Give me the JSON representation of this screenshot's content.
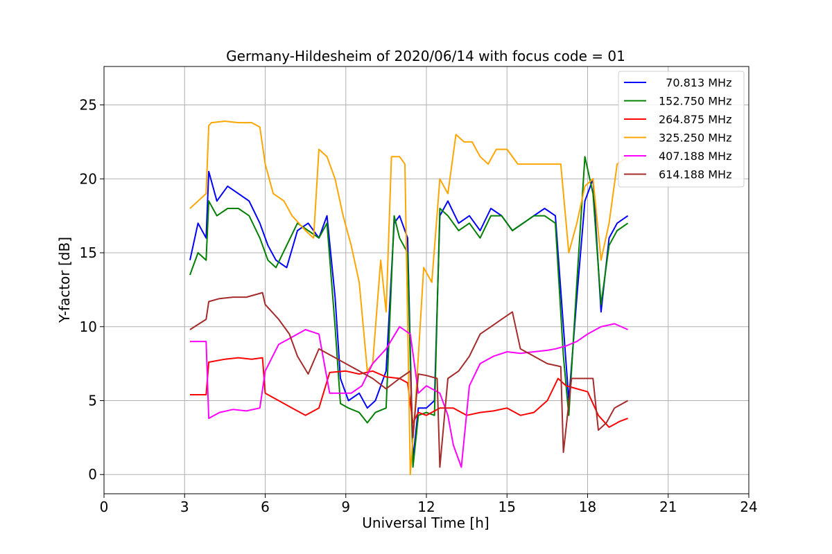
{
  "chart_data": {
    "type": "line",
    "title": "Germany-Hildesheim of 2020/06/14 with focus code = 01",
    "xlabel": "Universal Time [h]",
    "ylabel": "Y-factor [dB]",
    "xlim": [
      0,
      24
    ],
    "ylim": [
      -1.3,
      27.6
    ],
    "xticks": [
      0,
      3,
      6,
      9,
      12,
      15,
      18,
      21,
      24
    ],
    "yticks": [
      0,
      5,
      10,
      15,
      20,
      25
    ],
    "grid": true,
    "legend_position": "top-right",
    "series": [
      {
        "name": "  70.813 MHz",
        "color": "#0000ff",
        "x": [
          3.2,
          3.5,
          3.8,
          3.9,
          4.2,
          4.6,
          5.0,
          5.4,
          5.8,
          6.1,
          6.4,
          6.8,
          7.2,
          7.6,
          8.0,
          8.3,
          8.6,
          8.8,
          9.1,
          9.5,
          9.8,
          10.1,
          10.5,
          10.8,
          11.0,
          11.3,
          11.5,
          11.7,
          12.0,
          12.3,
          12.5,
          12.8,
          13.2,
          13.6,
          14.0,
          14.4,
          14.8,
          15.2,
          15.6,
          16.0,
          16.4,
          16.8,
          17.1,
          17.3,
          17.6,
          17.9,
          18.2,
          18.5,
          18.8,
          19.1,
          19.5
        ],
        "y": [
          14.5,
          17.0,
          16.0,
          20.5,
          18.5,
          19.5,
          19.0,
          18.5,
          17.0,
          15.5,
          14.5,
          14.0,
          16.5,
          17.0,
          16.0,
          17.5,
          12.0,
          6.5,
          5.0,
          5.5,
          4.5,
          5.0,
          7.0,
          17.0,
          17.5,
          16.0,
          1.0,
          4.5,
          4.5,
          5.0,
          17.5,
          18.5,
          17.0,
          17.5,
          16.5,
          18.0,
          17.5,
          16.5,
          17.0,
          17.5,
          18.0,
          17.5,
          10.0,
          5.0,
          12.0,
          18.5,
          20.0,
          11.0,
          16.0,
          17.0,
          17.5
        ]
      },
      {
        "name": "152.750 MHz",
        "color": "#008000",
        "x": [
          3.2,
          3.5,
          3.8,
          3.9,
          4.2,
          4.6,
          5.0,
          5.4,
          5.8,
          6.1,
          6.4,
          6.8,
          7.2,
          7.6,
          8.0,
          8.3,
          8.6,
          8.8,
          9.1,
          9.5,
          9.8,
          10.1,
          10.5,
          10.8,
          11.0,
          11.3,
          11.5,
          11.7,
          12.0,
          12.3,
          12.5,
          12.8,
          13.2,
          13.6,
          14.0,
          14.4,
          14.8,
          15.2,
          15.6,
          16.0,
          16.4,
          16.8,
          17.1,
          17.3,
          17.6,
          17.9,
          18.2,
          18.5,
          18.8,
          19.1,
          19.5
        ],
        "y": [
          13.5,
          15.0,
          14.5,
          18.5,
          17.5,
          18.0,
          18.0,
          17.5,
          16.0,
          14.5,
          14.0,
          15.5,
          17.0,
          16.5,
          16.0,
          17.0,
          10.0,
          4.8,
          4.5,
          4.2,
          3.5,
          4.2,
          4.5,
          17.5,
          16.0,
          15.0,
          0.5,
          4.0,
          4.2,
          4.0,
          18.0,
          17.5,
          16.5,
          17.0,
          16.0,
          17.5,
          17.5,
          16.5,
          17.0,
          17.5,
          17.5,
          17.0,
          8.0,
          4.0,
          13.0,
          21.5,
          19.0,
          11.5,
          15.5,
          16.5,
          17.0
        ]
      },
      {
        "name": "264.875 MHz",
        "color": "#ff0000",
        "x": [
          3.2,
          3.8,
          3.9,
          4.5,
          5.0,
          5.5,
          5.9,
          6.0,
          6.5,
          7.0,
          7.5,
          8.0,
          8.4,
          9.0,
          9.5,
          10.0,
          10.5,
          11.0,
          11.3,
          11.5,
          11.7,
          12.0,
          12.5,
          13.0,
          13.5,
          14.0,
          14.5,
          15.0,
          15.5,
          16.0,
          16.5,
          16.9,
          17.2,
          17.6,
          18.0,
          18.4,
          18.8,
          19.2,
          19.5
        ],
        "y": [
          5.4,
          5.4,
          7.6,
          7.8,
          7.9,
          7.8,
          7.9,
          5.5,
          5.0,
          4.5,
          4.0,
          4.5,
          6.9,
          7.0,
          6.8,
          7.0,
          6.6,
          6.5,
          6.2,
          3.5,
          4.2,
          4.0,
          4.5,
          4.5,
          4.0,
          4.2,
          4.3,
          4.5,
          4.0,
          4.2,
          5.0,
          6.5,
          6.0,
          5.8,
          5.6,
          4.0,
          3.2,
          3.6,
          3.8
        ]
      },
      {
        "name": "325.250 MHz",
        "color": "#ffa500",
        "x": [
          3.2,
          3.5,
          3.8,
          3.9,
          4.0,
          4.5,
          5.0,
          5.5,
          5.8,
          6.0,
          6.3,
          6.7,
          7.0,
          7.5,
          7.8,
          8.0,
          8.3,
          8.6,
          8.9,
          9.2,
          9.5,
          9.8,
          10.0,
          10.3,
          10.5,
          10.7,
          11.0,
          11.2,
          11.4,
          11.6,
          11.9,
          12.2,
          12.5,
          12.8,
          13.1,
          13.4,
          13.7,
          14.0,
          14.3,
          14.6,
          15.0,
          15.4,
          15.8,
          16.2,
          16.6,
          17.0,
          17.3,
          17.6,
          17.9,
          18.2,
          18.5,
          18.8,
          19.1,
          19.5
        ],
        "y": [
          18.0,
          18.5,
          19.0,
          23.6,
          23.8,
          23.9,
          23.8,
          23.8,
          23.5,
          21.0,
          19.0,
          18.5,
          17.5,
          16.5,
          16.0,
          22.0,
          21.5,
          20.0,
          17.5,
          15.5,
          13.0,
          7.0,
          7.5,
          14.5,
          11.0,
          21.5,
          21.5,
          21.0,
          0.0,
          5.0,
          14.0,
          13.0,
          20.0,
          19.0,
          23.0,
          22.5,
          22.5,
          21.5,
          21.0,
          22.0,
          22.0,
          21.0,
          21.0,
          21.0,
          21.0,
          21.0,
          15.0,
          17.0,
          19.5,
          20.0,
          14.5,
          17.0,
          21.0,
          21.5
        ]
      },
      {
        "name": "407.188 MHz",
        "color": "#ff00ff",
        "x": [
          3.2,
          3.8,
          3.9,
          4.3,
          4.8,
          5.3,
          5.8,
          6.0,
          6.5,
          7.0,
          7.5,
          8.0,
          8.4,
          8.8,
          9.2,
          9.6,
          10.0,
          10.5,
          11.0,
          11.4,
          11.7,
          12.0,
          12.5,
          12.8,
          13.0,
          13.3,
          13.6,
          14.0,
          14.5,
          15.0,
          15.5,
          16.0,
          16.5,
          16.8,
          17.2,
          17.6,
          18.0,
          18.5,
          19.0,
          19.5
        ],
        "y": [
          9.0,
          9.0,
          3.8,
          4.2,
          4.4,
          4.3,
          4.5,
          7.0,
          8.8,
          9.3,
          9.8,
          9.5,
          5.5,
          5.5,
          5.5,
          6.0,
          7.5,
          8.5,
          10.0,
          9.5,
          5.5,
          6.0,
          5.5,
          4.0,
          2.0,
          0.5,
          6.0,
          7.5,
          8.0,
          8.3,
          8.2,
          8.3,
          8.4,
          8.5,
          8.7,
          9.0,
          9.5,
          10.0,
          10.2,
          9.8
        ]
      },
      {
        "name": "614.188 MHz",
        "color": "#a52a2a",
        "x": [
          3.2,
          3.8,
          3.9,
          4.3,
          4.8,
          5.3,
          5.9,
          6.0,
          6.5,
          6.9,
          7.2,
          7.6,
          8.0,
          8.5,
          9.0,
          9.5,
          10.0,
          10.5,
          11.0,
          11.4,
          11.5,
          11.7,
          12.0,
          12.4,
          12.5,
          12.8,
          13.2,
          13.6,
          14.0,
          14.4,
          14.8,
          15.2,
          15.5,
          16.0,
          16.5,
          17.0,
          17.1,
          17.4,
          17.8,
          18.2,
          18.4,
          18.7,
          19.0,
          19.5
        ],
        "y": [
          9.8,
          10.5,
          11.7,
          11.9,
          12.0,
          12.0,
          12.3,
          11.5,
          10.5,
          9.5,
          8.0,
          6.8,
          8.5,
          8.0,
          7.5,
          7.0,
          6.5,
          5.8,
          6.5,
          7.0,
          2.5,
          6.8,
          6.7,
          6.5,
          0.5,
          6.5,
          7.0,
          8.0,
          9.5,
          10.0,
          10.5,
          11.0,
          8.5,
          8.0,
          7.5,
          7.3,
          1.5,
          6.5,
          6.5,
          6.5,
          3.0,
          3.5,
          4.5,
          5.0
        ]
      }
    ]
  }
}
